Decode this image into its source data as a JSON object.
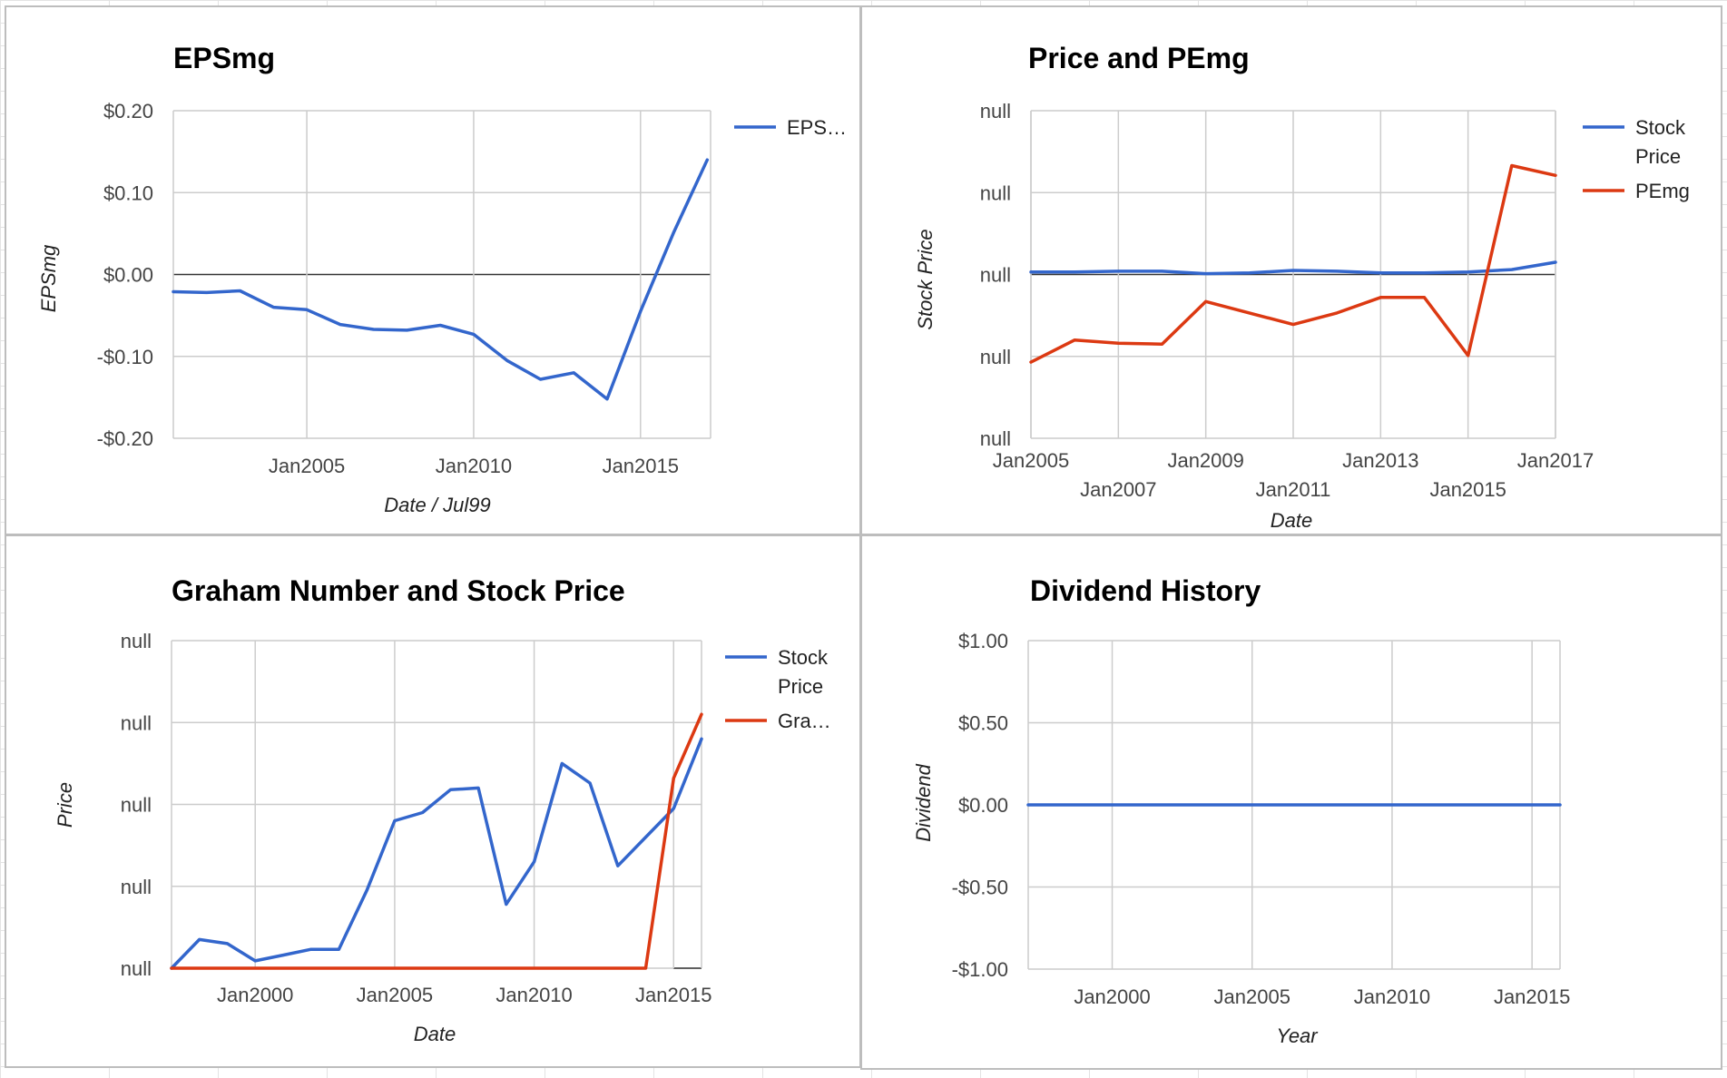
{
  "colors": {
    "blue": "#3366cc",
    "red": "#dc3912"
  },
  "chart_data": [
    {
      "id": "eps",
      "type": "line",
      "title": "EPSmg",
      "xlabel": "Date / Jul99",
      "ylabel": "EPSmg",
      "ylim": [
        -0.2,
        0.2
      ],
      "xlim": [
        2001.0,
        2017.1
      ],
      "yticks": [
        0.2,
        0.1,
        0.0,
        -0.1,
        -0.2
      ],
      "ytick_labels": [
        "$0.20",
        "$0.10",
        "$0.00",
        "-$0.10",
        "-$0.20"
      ],
      "xticks": [
        2005,
        2010,
        2015
      ],
      "xtick_labels": [
        "Jan2005",
        "Jan2010",
        "Jan2015"
      ],
      "legend": "right",
      "series": [
        {
          "name": "EPS…",
          "color": "#3366cc",
          "x": [
            2001.0,
            2002.0,
            2003.0,
            2004.0,
            2005.0,
            2006.0,
            2007.0,
            2008.0,
            2009.0,
            2010.0,
            2011.0,
            2012.0,
            2013.0,
            2014.0,
            2015.0,
            2016.0,
            2017.0
          ],
          "y": [
            -0.021,
            -0.022,
            -0.02,
            -0.04,
            -0.043,
            -0.061,
            -0.067,
            -0.068,
            -0.062,
            -0.073,
            -0.105,
            -0.128,
            -0.12,
            -0.152,
            -0.045,
            0.052,
            0.14
          ]
        }
      ]
    },
    {
      "id": "price",
      "type": "line",
      "title": "Price and PEmg",
      "xlabel": "Date",
      "ylabel": "Stock Price",
      "ylim": [
        -2,
        2
      ],
      "xlim": [
        2005.0,
        2017.0
      ],
      "yticks": [
        2,
        1,
        0,
        -1,
        -2
      ],
      "ytick_labels": [
        "null",
        "null",
        "null",
        "null",
        "null"
      ],
      "xticks": [
        2005,
        2007,
        2009,
        2011,
        2013,
        2015,
        2017
      ],
      "xtick_labels": [
        "Jan2005",
        "Jan2007",
        "Jan2009",
        "Jan2011",
        "Jan2013",
        "Jan2015",
        "Jan2017"
      ],
      "legend": "right",
      "series": [
        {
          "name": "Stock Price",
          "color": "#3366cc",
          "x": [
            2005.0,
            2006.0,
            2007.0,
            2008.0,
            2009.0,
            2010.0,
            2011.0,
            2012.0,
            2013.0,
            2014.0,
            2015.0,
            2016.0,
            2017.0
          ],
          "y": [
            0.03,
            0.03,
            0.04,
            0.04,
            0.01,
            0.02,
            0.05,
            0.04,
            0.02,
            0.02,
            0.03,
            0.06,
            0.15
          ]
        },
        {
          "name": "PEmg",
          "color": "#dc3912",
          "x": [
            2005.0,
            2006.0,
            2007.0,
            2008.0,
            2009.0,
            2011.0,
            2012.0,
            2013.0,
            2014.0,
            2015.0,
            2016.0,
            2017.0
          ],
          "y": [
            -1.07,
            -0.8,
            -0.84,
            -0.85,
            -0.33,
            -0.61,
            -0.47,
            -0.28,
            -0.28,
            -0.99,
            1.33,
            1.21
          ]
        }
      ]
    },
    {
      "id": "graham",
      "type": "line",
      "title": "Graham Number and Stock Price",
      "xlabel": "Date",
      "ylabel": "Price",
      "ylim": [
        0,
        4
      ],
      "xlim": [
        1997.0,
        2016.0
      ],
      "yticks": [
        4,
        3,
        2,
        1,
        0
      ],
      "ytick_labels": [
        "null",
        "null",
        "null",
        "null",
        "null"
      ],
      "xticks": [
        2000,
        2005,
        2010,
        2015
      ],
      "xtick_labels": [
        "Jan2000",
        "Jan2005",
        "Jan2010",
        "Jan2015"
      ],
      "legend": "right",
      "series": [
        {
          "name": "Stock Price",
          "color": "#3366cc",
          "x": [
            1997.0,
            1998.0,
            1999.0,
            2000.0,
            2001.0,
            2002.0,
            2003.0,
            2004.0,
            2005.0,
            2006.0,
            2007.0,
            2008.0,
            2009.0,
            2010.0,
            2011.0,
            2012.0,
            2013.0,
            2014.0,
            2015.0,
            2016.0
          ],
          "y": [
            0.0,
            0.35,
            0.3,
            0.09,
            0.16,
            0.23,
            0.23,
            0.95,
            1.8,
            1.9,
            2.18,
            2.2,
            0.78,
            1.3,
            2.5,
            2.26,
            1.25,
            1.6,
            1.95,
            2.8
          ]
        },
        {
          "name": "Gra…",
          "color": "#dc3912",
          "x": [
            1997.0,
            2014.0,
            2015.0,
            2016.0
          ],
          "y": [
            0.0,
            0.0,
            2.32,
            3.1
          ]
        }
      ]
    },
    {
      "id": "dividend",
      "type": "line",
      "title": "Dividend History",
      "xlabel": "Year",
      "ylabel": "Dividend",
      "ylim": [
        -1.0,
        1.0
      ],
      "xlim": [
        1997.0,
        2016.0
      ],
      "yticks": [
        1.0,
        0.5,
        0.0,
        -0.5,
        -1.0
      ],
      "ytick_labels": [
        "$1.00",
        "$0.50",
        "$0.00",
        "-$0.50",
        "-$1.00"
      ],
      "xticks": [
        2000,
        2005,
        2010,
        2015
      ],
      "xtick_labels": [
        "Jan2000",
        "Jan2005",
        "Jan2010",
        "Jan2015"
      ],
      "legend": "none",
      "series": [
        {
          "color": "#3366cc",
          "x": [
            1997.0,
            2016.0
          ],
          "y": [
            0.0,
            0.0
          ]
        }
      ]
    }
  ]
}
